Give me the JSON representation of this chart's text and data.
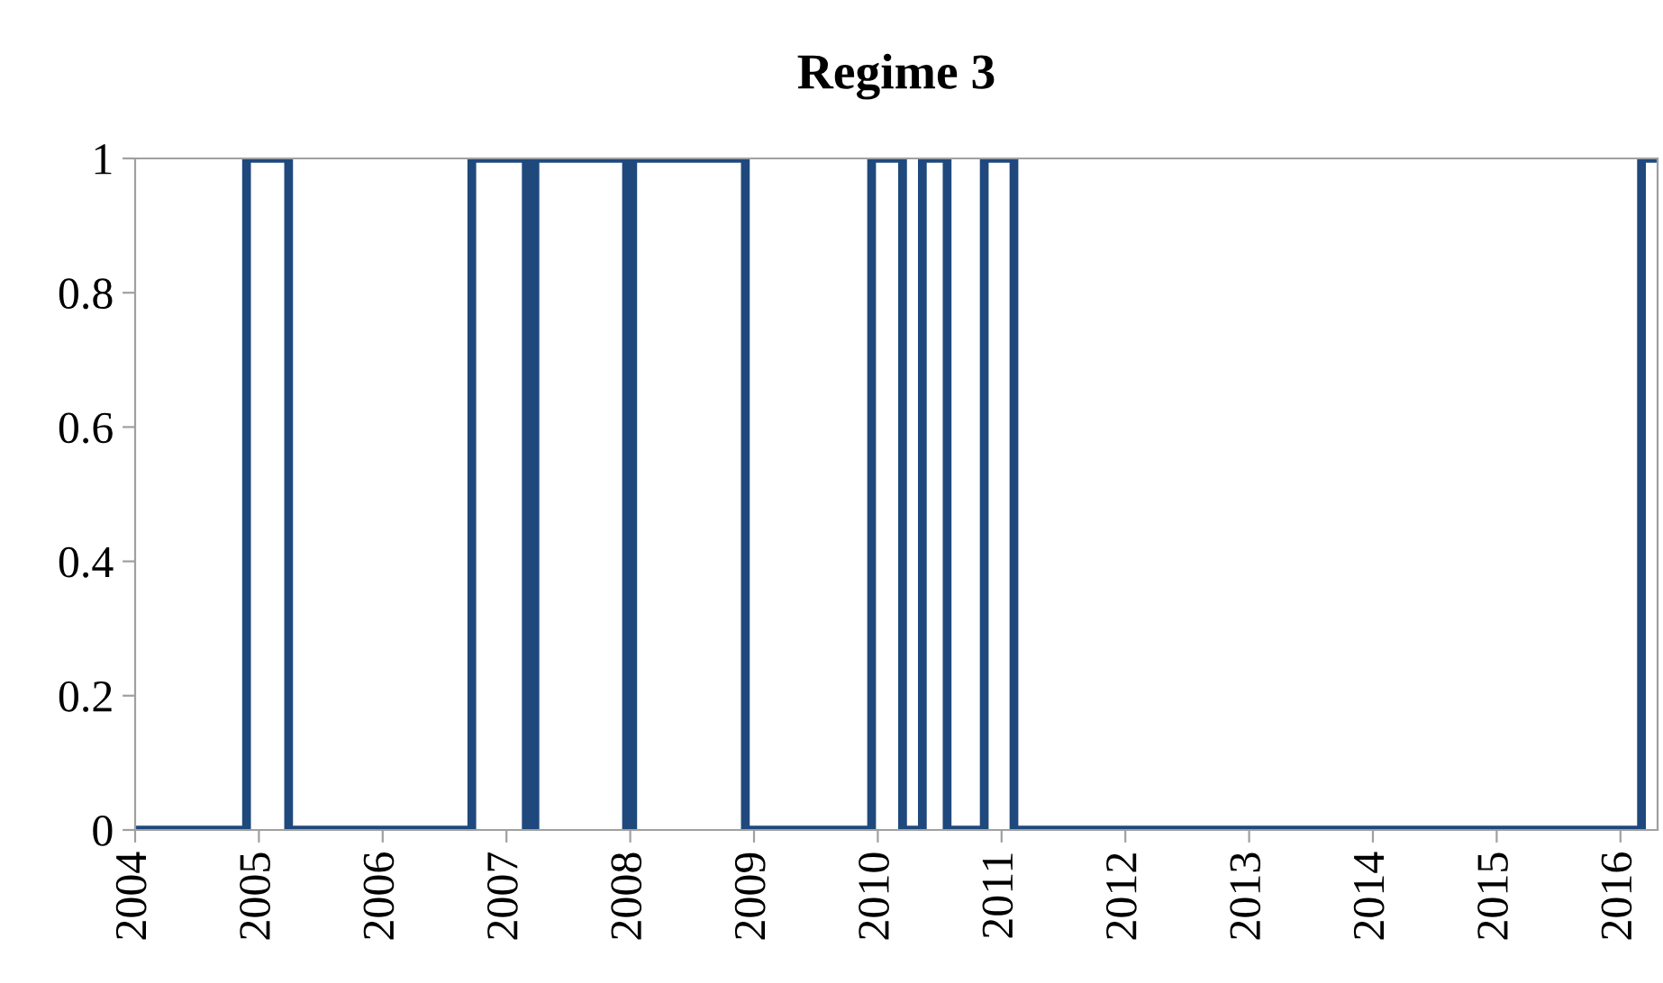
{
  "chart_data": {
    "type": "step",
    "title": "Regime 3",
    "x": [
      2004,
      2004.9,
      2005.24,
      2006.72,
      2007.16,
      2007.23,
      2007.97,
      2008.02,
      2008.93,
      2009.95,
      2010.2,
      2010.36,
      2010.56,
      2010.86,
      2011.1,
      2016.17,
      2016.3
    ],
    "series": [
      {
        "color": "#1f497d",
        "values": [
          0,
          1,
          0,
          1,
          0,
          1,
          0,
          1,
          0,
          1,
          0,
          1,
          0,
          1,
          0,
          1,
          1
        ]
      }
    ],
    "xlim": [
      2004,
      2016.3
    ],
    "xticks": [
      2004,
      2005,
      2006,
      2007,
      2008,
      2009,
      2010,
      2011,
      2012,
      2013,
      2014,
      2015,
      2016
    ],
    "ylim": [
      0,
      1
    ],
    "yticks": [
      0,
      {
        "value": 0.2,
        "label": "0.2"
      },
      {
        "value": 0.4,
        "label": "0.4"
      },
      {
        "value": 0.6,
        "label": "0.6"
      },
      {
        "value": 0.8,
        "label": "0.8"
      },
      1
    ],
    "grid": false,
    "legend": false
  }
}
